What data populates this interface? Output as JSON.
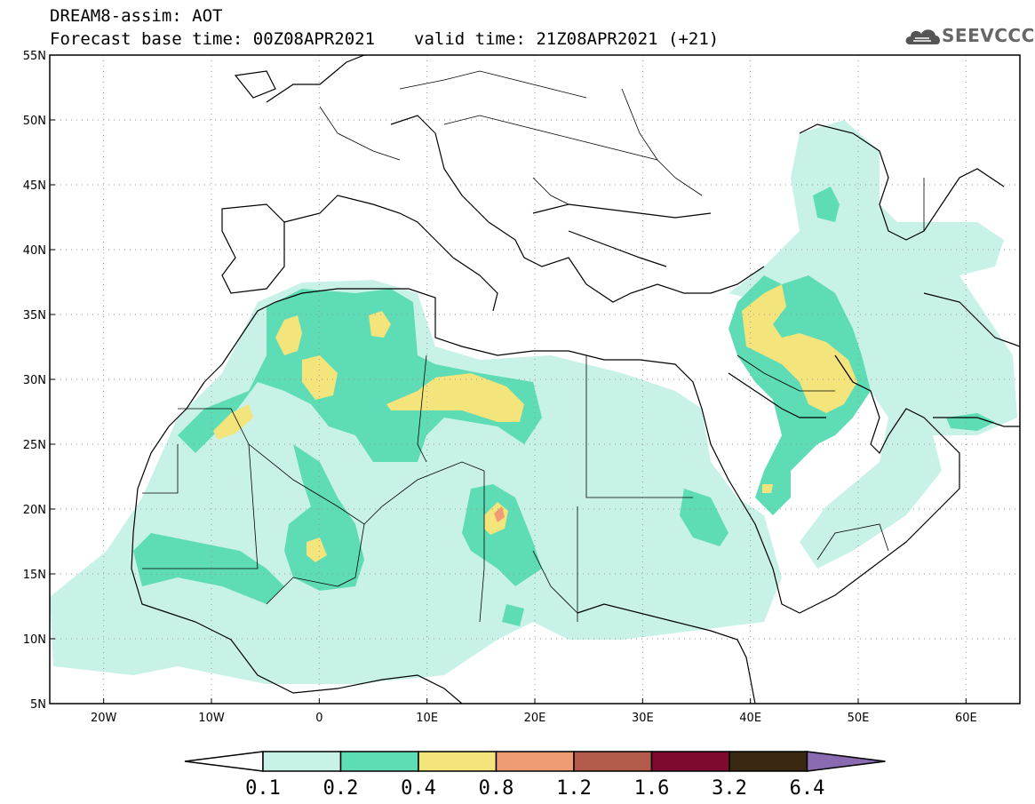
{
  "header": {
    "line1": "DREAM8-assim: AOT",
    "base_time": "Forecast base time: 00Z08APR2021",
    "valid_time": "valid time: 21Z08APR2021 (+21)",
    "logo_text": "SEEVCCC",
    "logo_icon": "cloud-icon"
  },
  "map": {
    "lon_range": [
      -25,
      65
    ],
    "lat_range": [
      5,
      55
    ],
    "lat_labels": [
      "55N",
      "50N",
      "45N",
      "40N",
      "35N",
      "30N",
      "25N",
      "20N",
      "15N",
      "10N",
      "5N"
    ],
    "lon_labels": [
      "20W",
      "10W",
      "0",
      "10E",
      "20E",
      "30E",
      "40E",
      "50E",
      "60E"
    ],
    "gridlines": true,
    "colors": {
      "c01": "#c8f2e8",
      "c02": "#5edcb6",
      "c04": "#f3e47c",
      "c08": "#ef9c72",
      "border": "#000000"
    }
  },
  "colorbar": {
    "labels": [
      "0.1",
      "0.2",
      "0.4",
      "0.8",
      "1.2",
      "1.6",
      "3.2",
      "6.4"
    ],
    "colors": [
      "#ffffff",
      "#c8f2e8",
      "#5edcb6",
      "#f3e47c",
      "#ef9c72",
      "#b35a4a",
      "#7e0a2f",
      "#3a2812",
      "#8a6ab0"
    ]
  }
}
